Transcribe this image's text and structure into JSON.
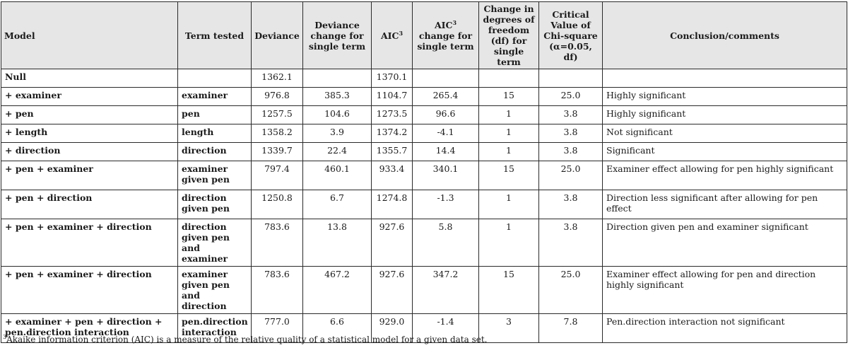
{
  "headers": {
    "model": "Model",
    "term": "Term tested",
    "deviance": "Deviance",
    "dev_change": "Deviance change for single term",
    "aic": "AIC",
    "aic_sup": "3",
    "aic_change_a": "AIC",
    "aic_change_sup": "3",
    "aic_change_b": " change for single term",
    "df_change": "Change in degrees of freedom (df) for single term",
    "critical": "Critical Value of Chi-square (α=0.05, df)",
    "conclusion": "Conclusion/comments"
  },
  "rows": [
    {
      "model": "Null",
      "term": "",
      "deviance": "1362.1",
      "dev_change": "",
      "aic": "1370.1",
      "aic_change": "",
      "df": "",
      "critical": "",
      "conclusion": ""
    },
    {
      "model": "+ examiner",
      "term": "examiner",
      "deviance": "976.8",
      "dev_change": "385.3",
      "aic": "1104.7",
      "aic_change": "265.4",
      "df": "15",
      "critical": "25.0",
      "conclusion": "Highly significant"
    },
    {
      "model": "+ pen",
      "term": "pen",
      "deviance": "1257.5",
      "dev_change": "104.6",
      "aic": "1273.5",
      "aic_change": "96.6",
      "df": "1",
      "critical": "3.8",
      "conclusion": "Highly significant"
    },
    {
      "model": "+ length",
      "term": "length",
      "deviance": "1358.2",
      "dev_change": "3.9",
      "aic": "1374.2",
      "aic_change": "-4.1",
      "df": "1",
      "critical": "3.8",
      "conclusion": "Not significant"
    },
    {
      "model": "+ direction",
      "term": "direction",
      "deviance": "1339.7",
      "dev_change": "22.4",
      "aic": "1355.7",
      "aic_change": "14.4",
      "df": "1",
      "critical": "3.8",
      "conclusion": "Significant"
    },
    {
      "model": "+ pen + examiner",
      "term": "examiner given pen",
      "deviance": "797.4",
      "dev_change": "460.1",
      "aic": "933.4",
      "aic_change": "340.1",
      "df": "15",
      "critical": "25.0",
      "conclusion": "Examiner effect allowing for pen highly significant"
    },
    {
      "model": "+ pen + direction",
      "term": "direction given pen",
      "deviance": "1250.8",
      "dev_change": "6.7",
      "aic": "1274.8",
      "aic_change": "-1.3",
      "df": "1",
      "critical": "3.8",
      "conclusion": "Direction less significant after allowing for pen effect"
    },
    {
      "model": "+ pen + examiner + direction",
      "term": "direction given pen and examiner",
      "deviance": "783.6",
      "dev_change": "13.8",
      "aic": "927.6",
      "aic_change": "5.8",
      "df": "1",
      "critical": "3.8",
      "conclusion": "Direction given pen and examiner significant"
    },
    {
      "model": "+ pen + examiner + direction",
      "term": "examiner given pen and direction",
      "deviance": "783.6",
      "dev_change": "467.2",
      "aic": "927.6",
      "aic_change": "347.2",
      "df": "15",
      "critical": "25.0",
      "conclusion": "Examiner effect allowing for pen and direction highly significant"
    },
    {
      "model": "+ examiner + pen + direction + pen.direction interaction",
      "term": "pen.direction interaction",
      "deviance": "777.0",
      "dev_change": "6.6",
      "aic": "929.0",
      "aic_change": "-1.4",
      "df": "3",
      "critical": "7.8",
      "conclusion": "Pen.direction interaction not significant"
    }
  ],
  "footnote": {
    "sup": "3",
    "text": "Akaike information criterion (AIC) is a measure of the relative quality of a statistical model for a given data set."
  }
}
